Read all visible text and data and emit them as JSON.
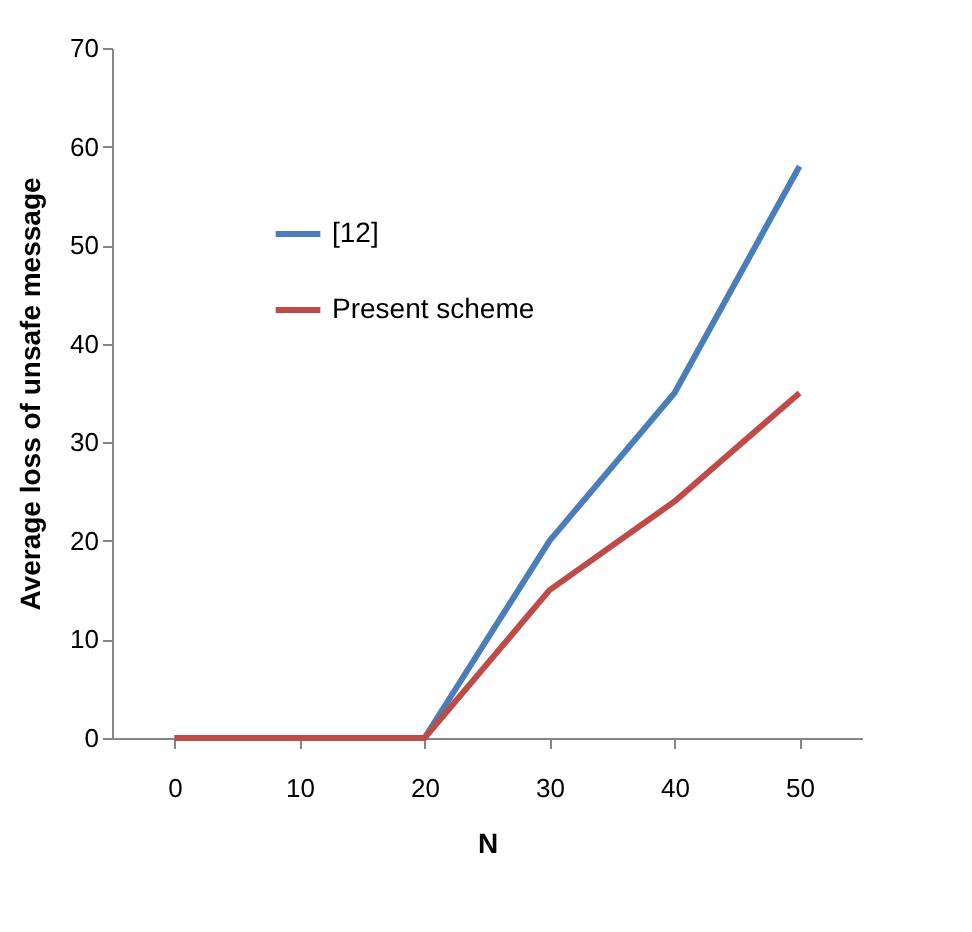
{
  "chart_data": {
    "type": "line",
    "xlabel": "N",
    "ylabel": "Average loss of unsafe message",
    "categories": [
      "0",
      "10",
      "20",
      "30",
      "40",
      "50"
    ],
    "series": [
      {
        "name": "[12]",
        "color": "#4a7ebb",
        "values": [
          0,
          0,
          0,
          20,
          35,
          58
        ]
      },
      {
        "name": "Present scheme",
        "color": "#be4b48",
        "values": [
          0,
          0,
          0,
          15,
          24,
          35
        ]
      }
    ],
    "ylim": [
      0,
      70
    ],
    "yticks": [
      0,
      10,
      20,
      30,
      40,
      50,
      60,
      70
    ],
    "grid": false,
    "legend": "top left",
    "marker": "none",
    "line_style": "solid"
  }
}
